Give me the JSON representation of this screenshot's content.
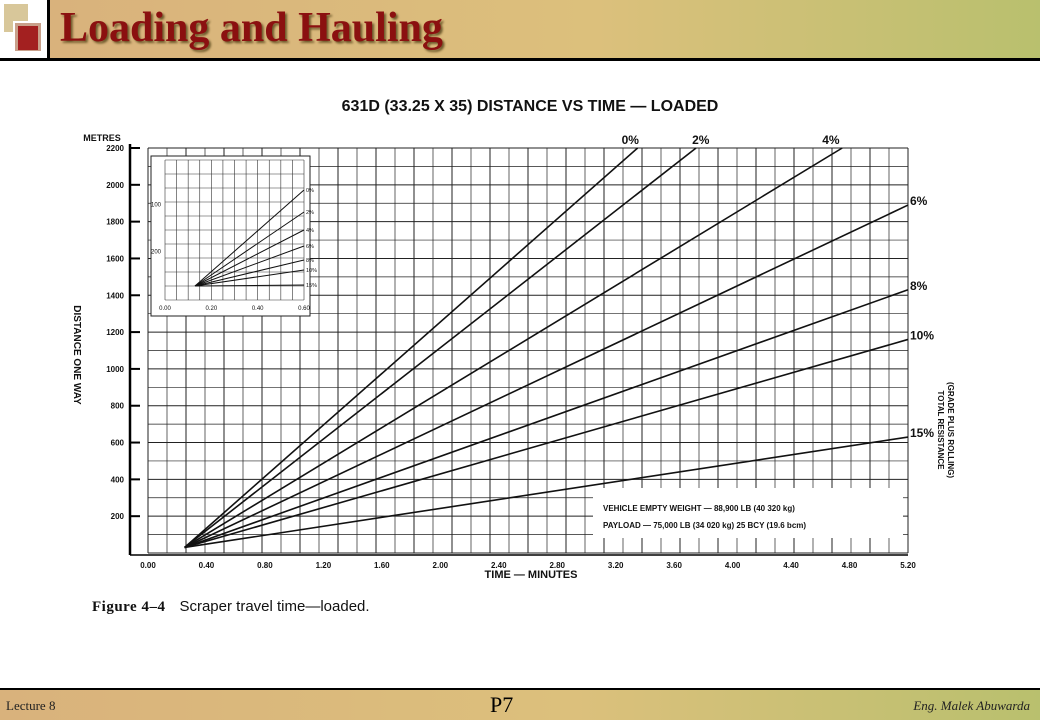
{
  "slide": {
    "title": "Loading and Hauling",
    "caption_figure": "Figure 4–4",
    "caption_text": "Scraper travel time—loaded.",
    "footer_left": "Lecture 8",
    "footer_center": "P7",
    "footer_right": "Eng. Malek Abuwarda"
  },
  "colors": {
    "title": "#8b1010",
    "bar_start": "#d9b27c",
    "bar_end": "#b9c06e"
  },
  "chart_data": {
    "type": "line",
    "title": "631D (33.25 X 35) DISTANCE VS TIME — LOADED",
    "xlabel": "TIME — MINUTES",
    "ylabel": "DISTANCE ONE WAY",
    "ylabel_unit": "METRES",
    "right_label_line1": "TOTAL RESISTANCE",
    "right_label_line2": "(GRADE PLUS ROLLING)",
    "xlim": [
      0,
      5.2
    ],
    "ylim": [
      0,
      2200
    ],
    "x_ticks": [
      "0.00",
      "0.40",
      "0.80",
      "1.20",
      "1.60",
      "2.00",
      "2.40",
      "2.80",
      "3.20",
      "3.60",
      "4.00",
      "4.40",
      "4.80",
      "5.20"
    ],
    "y_ticks": [
      "200",
      "400",
      "600",
      "800",
      "1000",
      "1200",
      "1400",
      "1600",
      "1800",
      "2000",
      "2200"
    ],
    "grid": true,
    "notes": [
      "VEHICLE EMPTY WEIGHT — 88,900 LB (40 320 kg)",
      "PAYLOAD — 75,000 LB (34 020 kg) 25 BCY (19.6 bcm)"
    ],
    "series": [
      {
        "name": "0%",
        "x": [
          0.25,
          3.35
        ],
        "y": [
          30,
          2200
        ]
      },
      {
        "name": "2%",
        "x": [
          0.25,
          3.75
        ],
        "y": [
          30,
          2200
        ]
      },
      {
        "name": "4%",
        "x": [
          0.25,
          4.75
        ],
        "y": [
          30,
          2200
        ]
      },
      {
        "name": "6%",
        "x": [
          0.25,
          5.2
        ],
        "y": [
          30,
          1890
        ]
      },
      {
        "name": "8%",
        "x": [
          0.25,
          5.2
        ],
        "y": [
          30,
          1430
        ]
      },
      {
        "name": "10%",
        "x": [
          0.25,
          5.2
        ],
        "y": [
          30,
          1160
        ]
      },
      {
        "name": "15%",
        "x": [
          0.25,
          5.2
        ],
        "y": [
          30,
          630
        ]
      }
    ],
    "inset": {
      "x_ticks": [
        "0.00",
        "0.20",
        "0.40",
        "0.60"
      ],
      "y_ticks": [
        "200",
        "100"
      ],
      "series_labels": [
        "0%",
        "2%",
        "4%",
        "6%",
        "8%",
        "10%",
        "15%"
      ]
    }
  }
}
